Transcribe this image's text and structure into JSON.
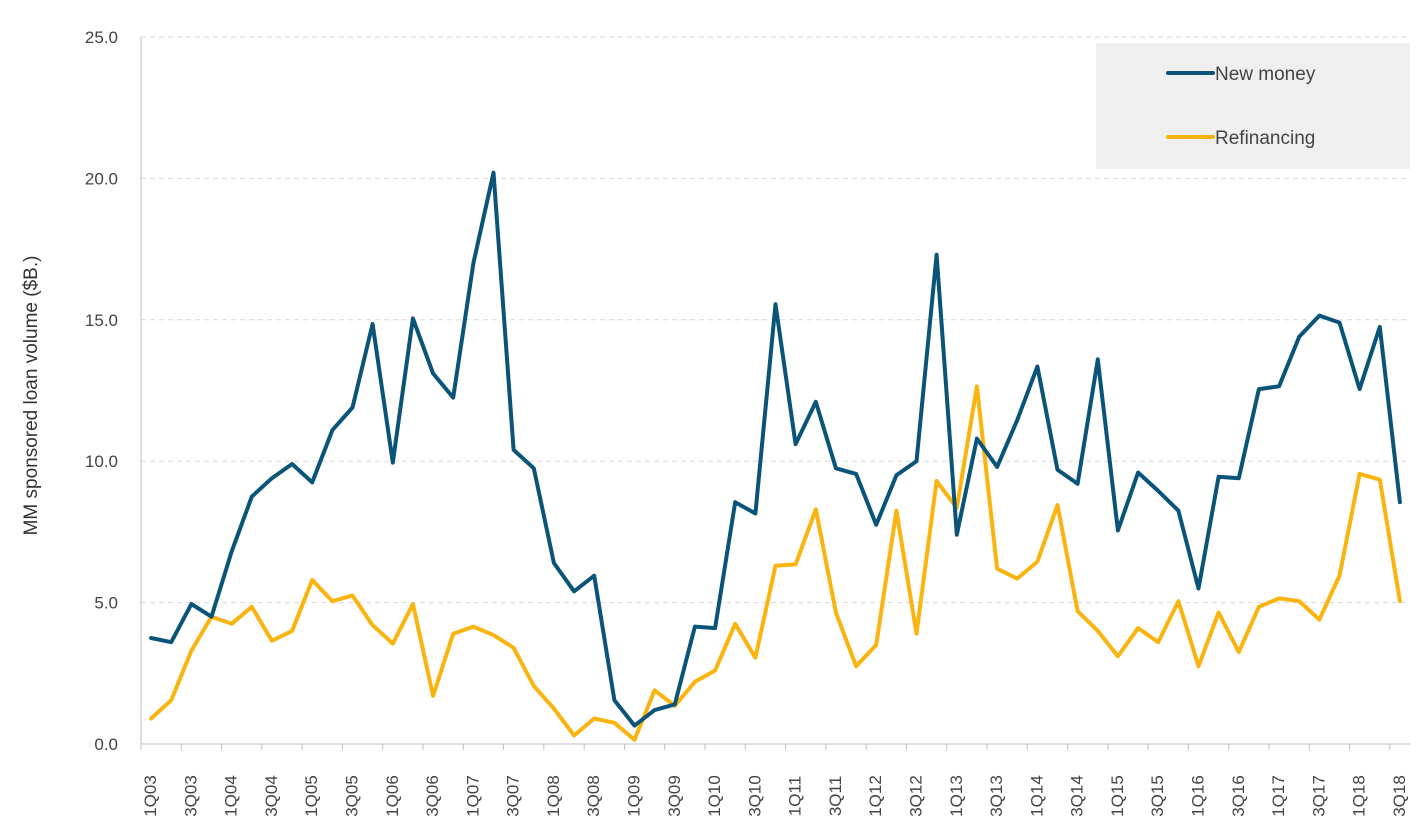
{
  "chart_data": {
    "type": "line",
    "ylabel": "MM sponsored loan volume ($B.)",
    "xlabel": "",
    "ylim": [
      0,
      25
    ],
    "yticks": [
      "0.0",
      "5.0",
      "10.0",
      "15.0",
      "20.0",
      "25.0"
    ],
    "ytick_values": [
      0,
      5,
      10,
      15,
      20,
      25
    ],
    "grid": "horizontal dashed",
    "legend_position": "top-right",
    "categories": [
      "1Q03",
      "2Q03",
      "3Q03",
      "4Q03",
      "1Q04",
      "2Q04",
      "3Q04",
      "4Q04",
      "1Q05",
      "2Q05",
      "3Q05",
      "4Q05",
      "1Q06",
      "2Q06",
      "3Q06",
      "4Q06",
      "1Q07",
      "2Q07",
      "3Q07",
      "4Q07",
      "1Q08",
      "2Q08",
      "3Q08",
      "4Q08",
      "1Q09",
      "2Q09",
      "3Q09",
      "4Q09",
      "1Q10",
      "2Q10",
      "3Q10",
      "4Q10",
      "1Q11",
      "2Q11",
      "3Q11",
      "4Q11",
      "1Q12",
      "2Q12",
      "3Q12",
      "4Q12",
      "1Q13",
      "2Q13",
      "3Q13",
      "4Q13",
      "1Q14",
      "2Q14",
      "3Q14",
      "4Q14",
      "1Q15",
      "2Q15",
      "3Q15",
      "4Q15",
      "1Q16",
      "2Q16",
      "3Q16",
      "4Q16",
      "1Q17",
      "2Q17",
      "3Q17",
      "4Q17",
      "1Q18",
      "2Q18",
      "3Q18"
    ],
    "xtick_labels": [
      "1Q03",
      "3Q03",
      "1Q04",
      "3Q04",
      "1Q05",
      "3Q05",
      "1Q06",
      "3Q06",
      "1Q07",
      "3Q07",
      "1Q08",
      "3Q08",
      "1Q09",
      "3Q09",
      "1Q10",
      "3Q10",
      "1Q11",
      "3Q11",
      "1Q12",
      "3Q12",
      "1Q13",
      "3Q13",
      "1Q14",
      "3Q14",
      "1Q15",
      "3Q15",
      "1Q16",
      "3Q16",
      "1Q17",
      "3Q17",
      "1Q18",
      "3Q18"
    ],
    "series": [
      {
        "name": "New money",
        "color": "#0b5479",
        "values": [
          3.75,
          3.6,
          4.95,
          4.5,
          6.8,
          8.75,
          9.4,
          9.9,
          9.25,
          11.1,
          11.9,
          14.85,
          9.95,
          15.05,
          13.1,
          12.25,
          17.0,
          20.2,
          10.4,
          9.75,
          6.4,
          5.4,
          5.95,
          1.55,
          0.65,
          1.2,
          1.4,
          4.15,
          4.1,
          8.55,
          8.15,
          15.55,
          10.6,
          12.1,
          9.75,
          9.55,
          7.75,
          9.5,
          10.0,
          17.3,
          7.4,
          10.8,
          9.8,
          11.45,
          13.35,
          9.7,
          9.2,
          13.6,
          7.55,
          9.6,
          8.95,
          8.25,
          5.5,
          9.45,
          9.4,
          12.55,
          12.65,
          14.4,
          15.15,
          14.9,
          12.55,
          14.75,
          8.55
        ]
      },
      {
        "name": "Refinancing",
        "color": "#fbb40f",
        "values": [
          0.9,
          1.55,
          3.3,
          4.5,
          4.25,
          4.85,
          3.65,
          4.0,
          5.8,
          5.05,
          5.25,
          4.2,
          3.55,
          4.95,
          1.7,
          3.9,
          4.15,
          3.85,
          3.4,
          2.05,
          1.25,
          0.3,
          0.9,
          0.75,
          0.15,
          1.9,
          1.35,
          2.2,
          2.6,
          4.25,
          3.05,
          6.3,
          6.35,
          8.3,
          4.65,
          2.75,
          3.5,
          8.25,
          3.9,
          9.3,
          8.35,
          12.65,
          6.2,
          5.85,
          6.45,
          8.45,
          4.7,
          4.0,
          3.1,
          4.1,
          3.6,
          5.05,
          2.75,
          4.65,
          3.25,
          4.85,
          5.15,
          5.05,
          4.4,
          5.95,
          9.55,
          9.35,
          5.05
        ]
      }
    ]
  }
}
